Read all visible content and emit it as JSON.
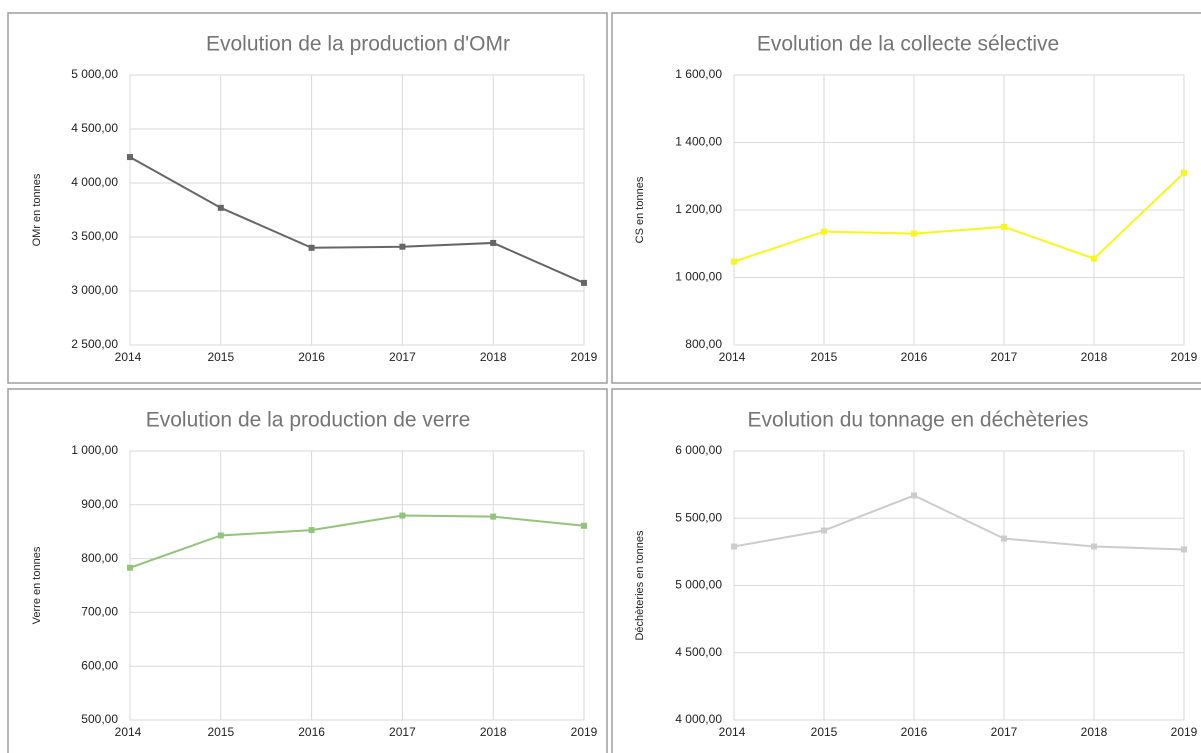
{
  "chart_data": [
    {
      "type": "line",
      "title": "Evolution de la production d'OMr",
      "ylabel": "OMr en tonnes",
      "categories": [
        "2014",
        "2015",
        "2016",
        "2017",
        "2018",
        "2019"
      ],
      "series": [
        {
          "name": "OMr",
          "color": "#666666",
          "values": [
            4240,
            3770,
            3400,
            3410,
            3445,
            3075
          ]
        }
      ],
      "ylim": [
        2500,
        5000
      ],
      "yticks": [
        {
          "value": 2500,
          "label": "2 500,00"
        },
        {
          "value": 3000,
          "label": "3 000,00"
        },
        {
          "value": 3500,
          "label": "3 500,00"
        },
        {
          "value": 4000,
          "label": "4 000,00"
        },
        {
          "value": 4500,
          "label": "4 500,00"
        },
        {
          "value": 5000,
          "label": "5 000,00"
        }
      ],
      "grid": true
    },
    {
      "type": "line",
      "title": "Evolution de la collecte sélective",
      "ylabel": "CS en tonnes",
      "categories": [
        "2014",
        "2015",
        "2016",
        "2017",
        "2018",
        "2019"
      ],
      "series": [
        {
          "name": "CS",
          "color": "#f7f71a",
          "values": [
            1047,
            1136,
            1130,
            1150,
            1056,
            1310
          ]
        }
      ],
      "ylim": [
        800,
        1600
      ],
      "yticks": [
        {
          "value": 800,
          "label": "800,00"
        },
        {
          "value": 1000,
          "label": "1 000,00"
        },
        {
          "value": 1200,
          "label": "1 200,00"
        },
        {
          "value": 1400,
          "label": "1 400,00"
        },
        {
          "value": 1600,
          "label": "1 600,00"
        }
      ],
      "grid": true
    },
    {
      "type": "line",
      "title": "Evolution de la production de verre",
      "ylabel": "Verre en tonnes",
      "categories": [
        "2014",
        "2015",
        "2016",
        "2017",
        "2018",
        "2019"
      ],
      "series": [
        {
          "name": "Verre",
          "color": "#93c47d",
          "values": [
            783,
            843,
            853,
            880,
            878,
            861
          ]
        }
      ],
      "ylim": [
        500,
        1000
      ],
      "yticks": [
        {
          "value": 500,
          "label": "500,00"
        },
        {
          "value": 600,
          "label": "600,00"
        },
        {
          "value": 700,
          "label": "700,00"
        },
        {
          "value": 800,
          "label": "800,00"
        },
        {
          "value": 900,
          "label": "900,00"
        },
        {
          "value": 1000,
          "label": "1 000,00"
        }
      ],
      "grid": true
    },
    {
      "type": "line",
      "title": "Evolution du tonnage en déchèteries",
      "ylabel": "Déchèteries en tonnes",
      "categories": [
        "2014",
        "2015",
        "2016",
        "2017",
        "2018",
        "2019"
      ],
      "series": [
        {
          "name": "Déchèteries",
          "color": "#cccccc",
          "values": [
            5290,
            5409,
            5669,
            5349,
            5290,
            5268
          ]
        }
      ],
      "ylim": [
        4000,
        6000
      ],
      "yticks": [
        {
          "value": 4000,
          "label": "4 000,00"
        },
        {
          "value": 4500,
          "label": "4 500,00"
        },
        {
          "value": 5000,
          "label": "5 000,00"
        },
        {
          "value": 5500,
          "label": "5 500,00"
        },
        {
          "value": 6000,
          "label": "6 000,00"
        }
      ],
      "grid": true
    }
  ]
}
